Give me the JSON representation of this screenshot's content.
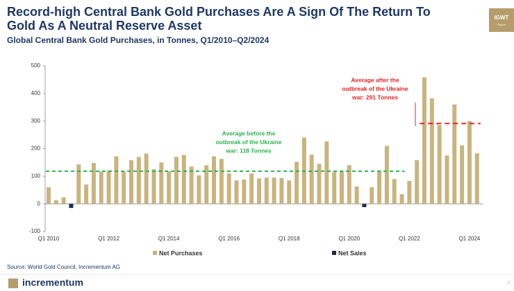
{
  "header": {
    "logo": [
      "IGWT",
      "Report"
    ]
  },
  "chart_data": {
    "type": "bar",
    "title": [
      "Record-high Central Bank Gold Purchases Are A Sign Of The Return To",
      "Gold As A Neutral Reserve Asset"
    ],
    "subtitle": "Global Central Bank Gold Purchases, in Tonnes, Q1/2010–Q2/2024",
    "categories": [
      "Q1 2010",
      null,
      null,
      null,
      null,
      null,
      null,
      null,
      "Q1 2012",
      null,
      null,
      null,
      null,
      null,
      null,
      null,
      "Q1 2014",
      null,
      null,
      null,
      null,
      null,
      null,
      null,
      "Q1 2016",
      null,
      null,
      null,
      null,
      null,
      null,
      null,
      "Q1 2018",
      null,
      null,
      null,
      null,
      null,
      null,
      null,
      "Q1 2020",
      null,
      null,
      null,
      null,
      null,
      null,
      null,
      "Q1 2022",
      null,
      null,
      null,
      null,
      null,
      null,
      null,
      "Q1 2024",
      null
    ],
    "series": [
      {
        "name": "Net Purchases",
        "color": "#c9b47f",
        "values": [
          60,
          13,
          23,
          null,
          143,
          70,
          148,
          117,
          120,
          172,
          117,
          158,
          170,
          182,
          125,
          150,
          118,
          170,
          177,
          135,
          103,
          140,
          172,
          163,
          110,
          85,
          88,
          110,
          92,
          95,
          95,
          93,
          85,
          152,
          240,
          178,
          145,
          226,
          115,
          118,
          140,
          63,
          null,
          60,
          118,
          210,
          90,
          35,
          83,
          158,
          458,
          382,
          286,
          175,
          360,
          212,
          300,
          183
        ]
      },
      {
        "name": "Net Sales",
        "color": "#1f2a4f",
        "values": [
          null,
          null,
          null,
          -15,
          null,
          null,
          null,
          null,
          null,
          null,
          null,
          null,
          null,
          null,
          null,
          null,
          null,
          null,
          null,
          null,
          null,
          null,
          null,
          null,
          null,
          null,
          null,
          null,
          null,
          null,
          null,
          null,
          null,
          null,
          null,
          null,
          null,
          null,
          null,
          null,
          null,
          null,
          -12,
          null,
          null,
          null,
          null,
          null,
          null,
          null,
          null,
          null,
          null,
          null,
          null,
          null,
          null,
          null
        ]
      }
    ],
    "ylim": [
      -100,
      500
    ],
    "yticks": [
      -100,
      0,
      100,
      200,
      300,
      400,
      500
    ],
    "reference_lines": [
      {
        "value": 118,
        "color": "#2bb24c",
        "label": [
          "Average before the",
          "outbreak of the Ukraine",
          "war: 118 Tonnes"
        ]
      },
      {
        "value": 291,
        "color": "#e52222",
        "label": [
          "Average after the",
          "outbreak of the Ukraine",
          "war: 291 Tonnes"
        ]
      }
    ],
    "legend": "bottom",
    "source": "Source: World Gold Council, Incrementum AG"
  },
  "footer": {
    "brand": "incrementum",
    "page": "7"
  }
}
